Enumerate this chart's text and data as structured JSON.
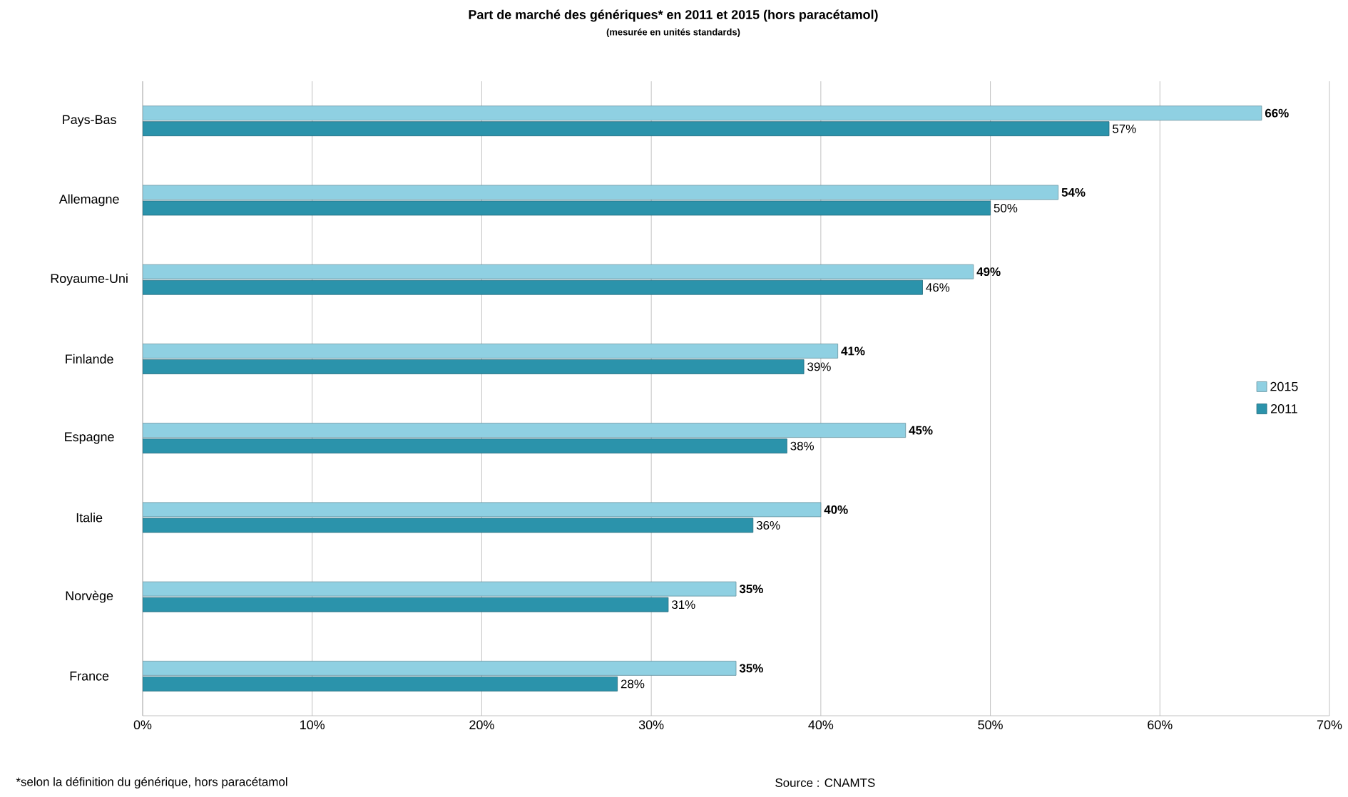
{
  "chart_data": {
    "type": "bar",
    "orientation": "horizontal",
    "title": "Part de marché des génériques* en 2011 et 2015  (hors paracétamol)",
    "subtitle": "(mesurée en unités standards)",
    "categories": [
      "Pays-Bas",
      "Allemagne",
      "Royaume-Uni",
      "Finlande",
      "Espagne",
      "Italie",
      "Norvège",
      "France"
    ],
    "series": [
      {
        "name": "2015",
        "color": "#8fd0e2",
        "values": [
          66,
          54,
          49,
          41,
          45,
          40,
          35,
          35
        ],
        "value_labels": [
          "66%",
          "54%",
          "49%",
          "41%",
          "45%",
          "40%",
          "35%",
          "35%"
        ]
      },
      {
        "name": "2011",
        "color": "#2b93ab",
        "values": [
          57,
          50,
          46,
          39,
          38,
          36,
          31,
          28
        ],
        "value_labels": [
          "57%",
          "50%",
          "46%",
          "39%",
          "38%",
          "36%",
          "31%",
          "28%"
        ]
      }
    ],
    "xlim": [
      0,
      70
    ],
    "xticks": [
      {
        "value": 0,
        "label": "0%"
      },
      {
        "value": 10,
        "label": "10%"
      },
      {
        "value": 20,
        "label": "20%"
      },
      {
        "value": 30,
        "label": "30%"
      },
      {
        "value": 40,
        "label": "40%"
      },
      {
        "value": 50,
        "label": "50%"
      },
      {
        "value": 60,
        "label": "60%"
      },
      {
        "value": 70,
        "label": "70%"
      }
    ],
    "grid": "x",
    "legend": "right",
    "annotations": [
      "*selon la définition du générique, hors paracétamol",
      "Source : CNAMTS"
    ]
  }
}
